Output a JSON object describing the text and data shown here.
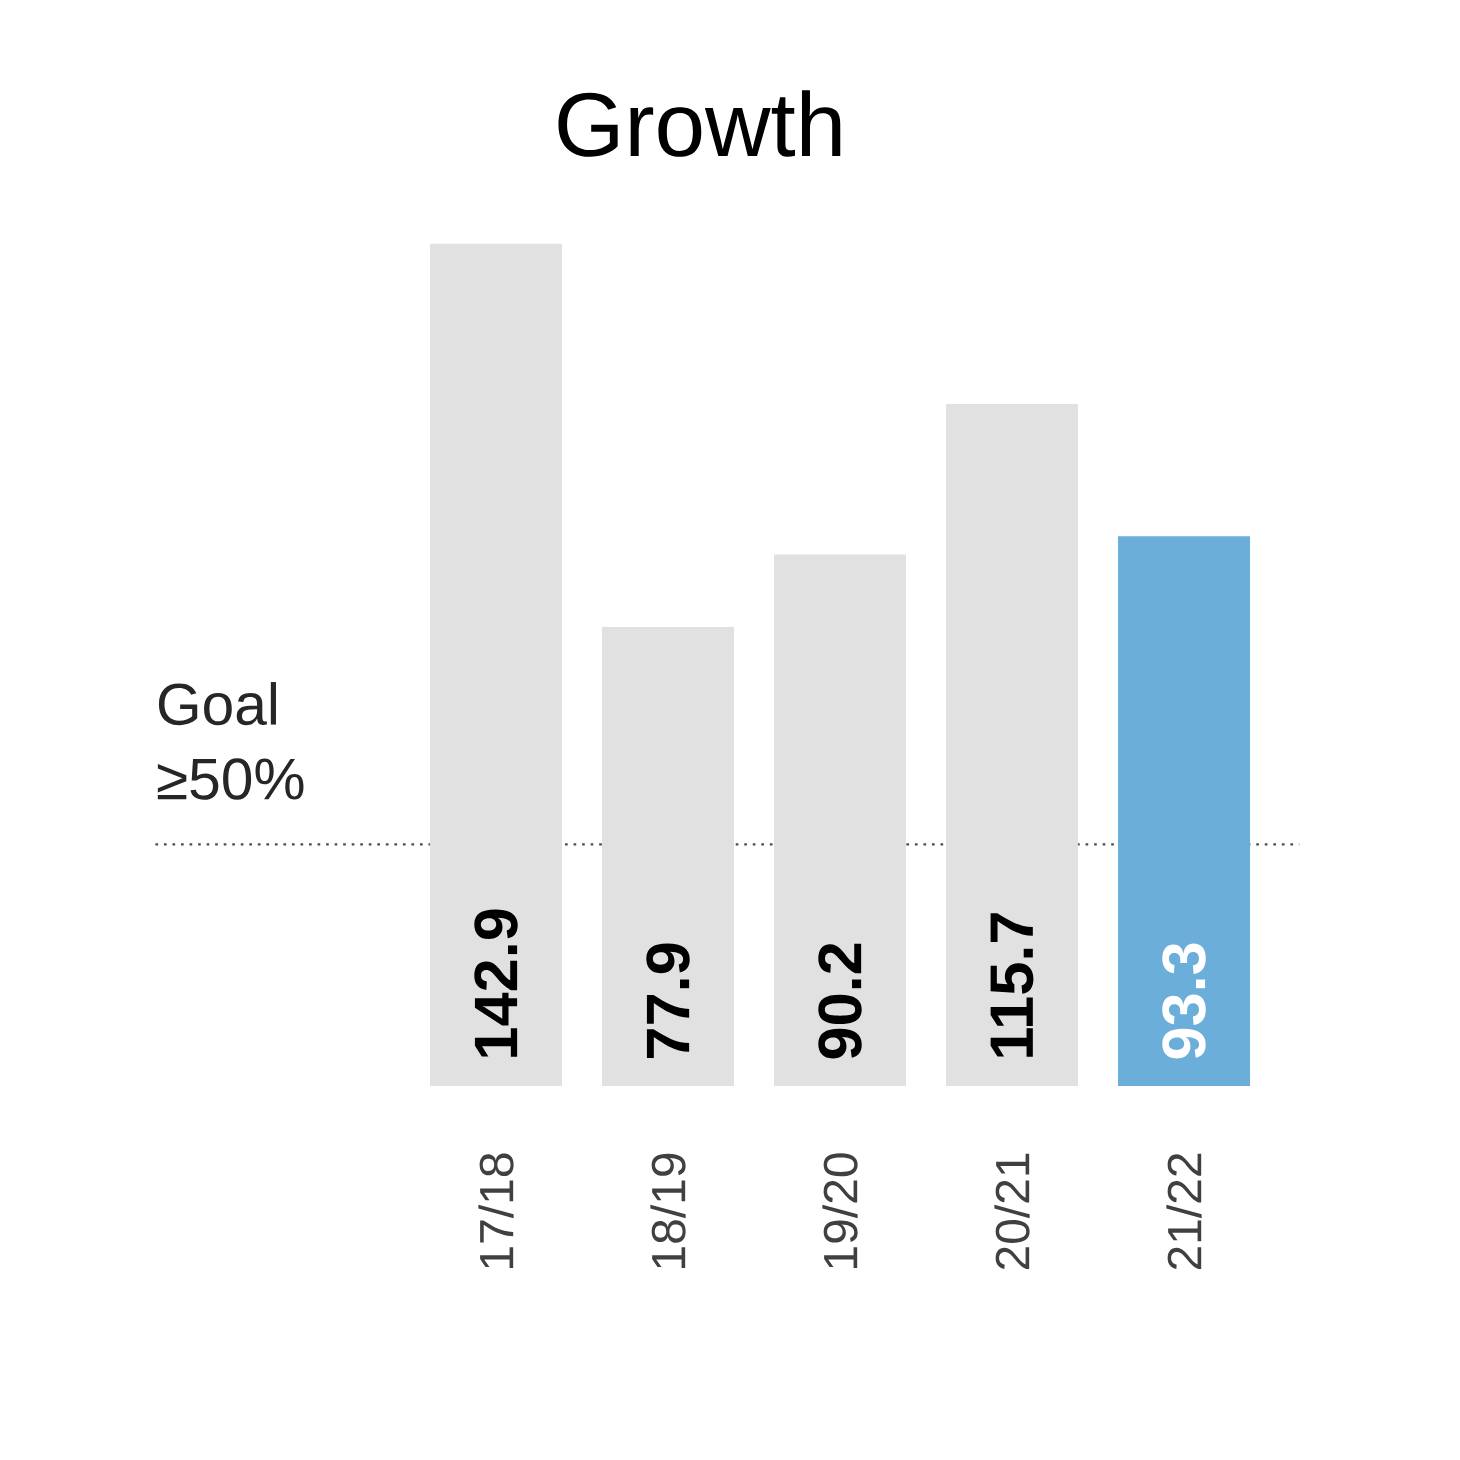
{
  "chart_data": {
    "type": "bar",
    "title": "Growth",
    "categories": [
      "17/18",
      "18/19",
      "19/20",
      "20/21",
      "21/22"
    ],
    "values": [
      142.9,
      77.9,
      90.2,
      115.7,
      93.3
    ],
    "colors": [
      "#e0e1e0",
      "#e0e1e0",
      "#e0e1e0",
      "#e0e1e0",
      "#6aaed9"
    ],
    "data_labels": true,
    "ref_lines": [
      {
        "axis": "y",
        "value": 41,
        "label": "Goal ≥50%",
        "line_style": "dotted"
      }
    ]
  }
}
